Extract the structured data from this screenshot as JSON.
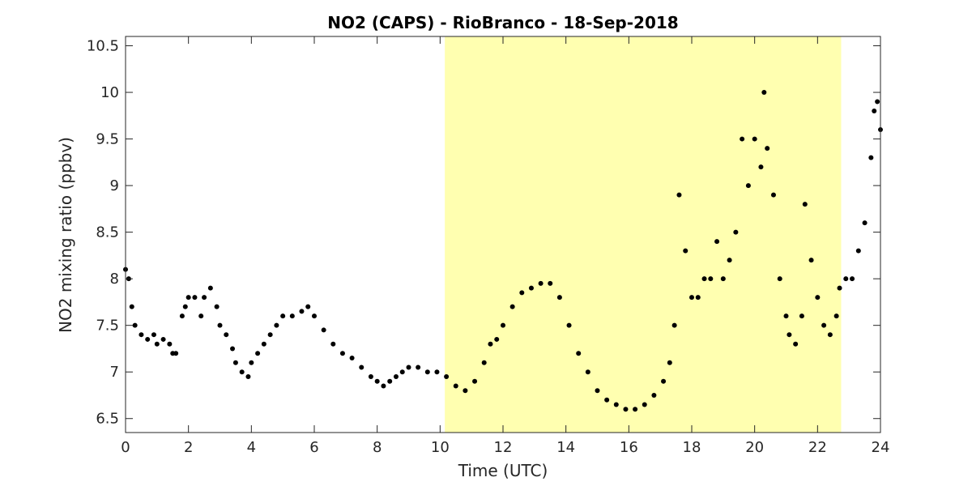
{
  "chart_data": {
    "type": "scatter",
    "title": "NO2 (CAPS) - RioBranco - 18-Sep-2018",
    "xlabel": "Time (UTC)",
    "ylabel": "NO2 mixing ratio (ppbv)",
    "xlim": [
      0,
      24
    ],
    "ylim": [
      6.35,
      10.6
    ],
    "x_ticks": [
      0,
      2,
      4,
      6,
      8,
      10,
      12,
      14,
      16,
      18,
      20,
      22,
      24
    ],
    "y_ticks": [
      6.5,
      7,
      7.5,
      8,
      8.5,
      9,
      9.5,
      10,
      10.5
    ],
    "grid": false,
    "highlight_band": {
      "x_start": 10.15,
      "x_end": 22.75,
      "color": "#ffffb0"
    },
    "marker_color": "#000000",
    "series": [
      {
        "x": [
          0,
          0.1,
          0.2,
          0.3,
          0.5,
          0.7,
          0.9,
          1.0,
          1.2,
          1.4,
          1.5,
          1.6,
          1.8,
          1.9,
          2.0,
          2.2,
          2.4,
          2.5,
          2.7,
          2.9,
          3.0,
          3.2,
          3.4,
          3.5,
          3.7,
          3.9,
          4.0,
          4.2,
          4.4,
          4.6,
          4.8,
          5.0,
          5.3,
          5.6,
          5.8,
          6.0,
          6.3,
          6.6,
          6.9,
          7.2,
          7.5,
          7.8,
          8.0,
          8.2,
          8.4,
          8.6,
          8.8,
          9.0,
          9.3,
          9.6,
          9.9,
          10.2,
          10.5,
          10.8,
          11.1,
          11.4,
          11.6,
          11.8,
          12.0,
          12.3,
          12.6,
          12.9,
          13.2,
          13.5,
          13.8,
          14.1,
          14.4,
          14.7,
          15.0,
          15.3,
          15.6,
          15.9,
          16.2,
          16.5,
          16.8,
          17.1,
          17.3,
          17.45,
          17.6,
          17.8,
          18.0,
          18.2,
          18.4,
          18.6,
          18.8,
          19.0,
          19.2,
          19.4,
          19.6,
          19.8,
          20.0,
          20.2,
          20.3,
          20.4,
          20.6,
          20.8,
          21.0,
          21.1,
          21.3,
          21.5,
          21.6,
          21.8,
          22.0,
          22.2,
          22.4,
          22.6,
          22.7,
          22.9,
          23.1,
          23.3,
          23.5,
          23.7,
          23.8,
          23.9,
          24.0
        ],
        "y": [
          8.1,
          8.0,
          7.7,
          7.5,
          7.4,
          7.35,
          7.4,
          7.3,
          7.35,
          7.3,
          7.2,
          7.2,
          7.6,
          7.7,
          7.8,
          7.8,
          7.6,
          7.8,
          7.9,
          7.7,
          7.5,
          7.4,
          7.25,
          7.1,
          7.0,
          6.95,
          7.1,
          7.2,
          7.3,
          7.4,
          7.5,
          7.6,
          7.6,
          7.65,
          7.7,
          7.6,
          7.45,
          7.3,
          7.2,
          7.15,
          7.05,
          6.95,
          6.9,
          6.85,
          6.9,
          6.95,
          7.0,
          7.05,
          7.05,
          7.0,
          7.0,
          6.95,
          6.85,
          6.8,
          6.9,
          7.1,
          7.3,
          7.35,
          7.5,
          7.7,
          7.85,
          7.9,
          7.95,
          7.95,
          7.8,
          7.5,
          7.2,
          7.0,
          6.8,
          6.7,
          6.65,
          6.6,
          6.6,
          6.65,
          6.75,
          6.9,
          7.1,
          7.5,
          8.9,
          8.3,
          7.8,
          7.8,
          8.0,
          8.0,
          8.4,
          8.0,
          8.2,
          8.5,
          9.5,
          9.0,
          9.5,
          9.2,
          10.0,
          9.4,
          8.9,
          8.0,
          7.6,
          7.4,
          7.3,
          7.6,
          8.8,
          8.2,
          7.8,
          7.5,
          7.4,
          7.6,
          7.9,
          8.0,
          8.0,
          8.3,
          8.6,
          9.3,
          9.8,
          9.9,
          9.6
        ]
      }
    ]
  }
}
